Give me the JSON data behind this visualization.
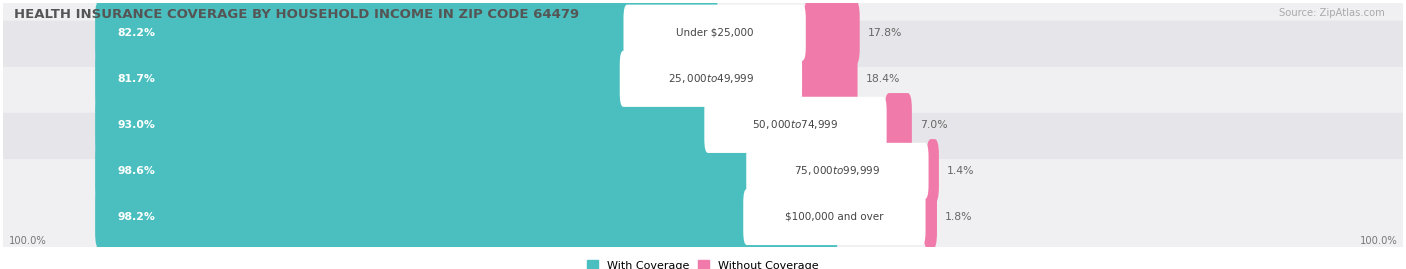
{
  "title": "HEALTH INSURANCE COVERAGE BY HOUSEHOLD INCOME IN ZIP CODE 64479",
  "source": "Source: ZipAtlas.com",
  "categories": [
    "Under $25,000",
    "$25,000 to $49,999",
    "$50,000 to $74,999",
    "$75,000 to $99,999",
    "$100,000 and over"
  ],
  "with_coverage": [
    82.2,
    81.7,
    93.0,
    98.6,
    98.2
  ],
  "without_coverage": [
    17.8,
    18.4,
    7.0,
    1.4,
    1.8
  ],
  "color_with": "#4bbfbf",
  "color_without": "#f07aaa",
  "row_bg_even": "#f0f0f2",
  "row_bg_odd": "#e6e6ea",
  "title_color": "#555555",
  "title_fontsize": 9.5,
  "label_fontsize": 7.8,
  "cat_fontsize": 7.5,
  "tick_fontsize": 7.2,
  "legend_fontsize": 8,
  "left_axis_label": "100.0%",
  "right_axis_label": "100.0%",
  "figsize": [
    14.06,
    2.69
  ],
  "dpi": 100,
  "total_bar_width": 62.0,
  "woc_scale": 0.22,
  "xlim_left": -8,
  "xlim_right": 108
}
